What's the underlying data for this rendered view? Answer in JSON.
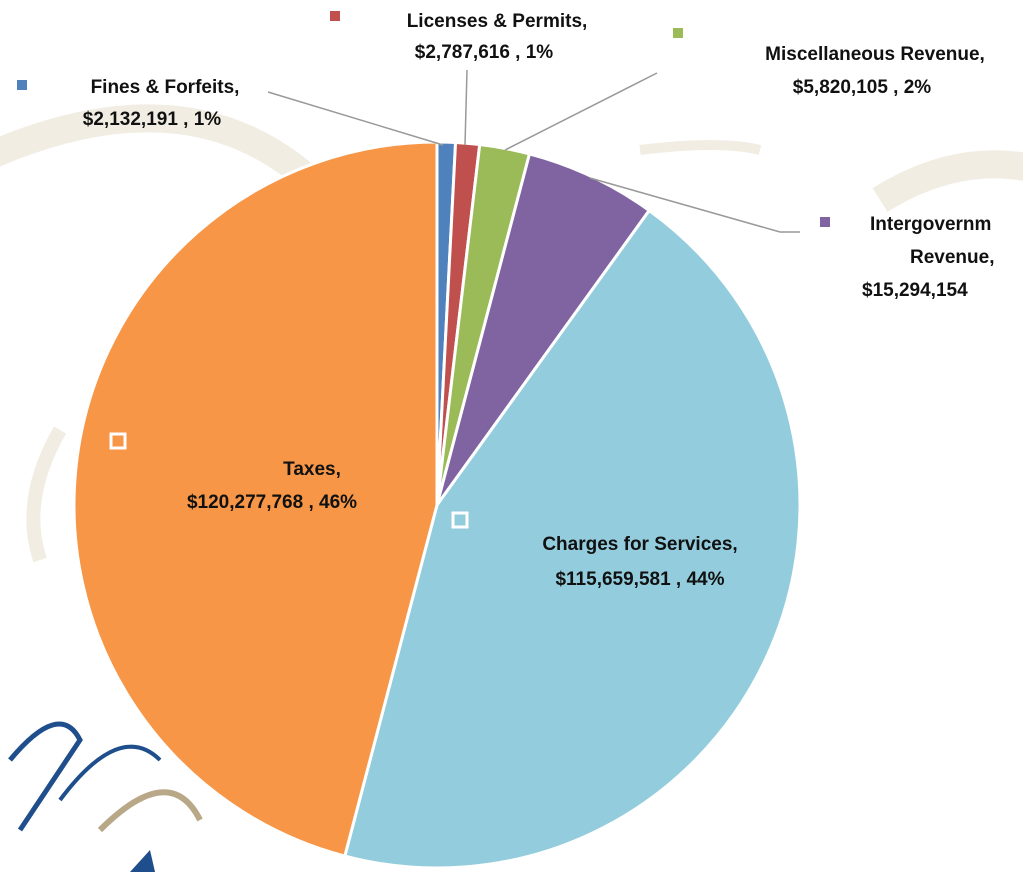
{
  "chart_data": {
    "type": "pie",
    "labels": [
      [
        "Fines & Forfeits,",
        "$2,132,191 , 1%"
      ],
      [
        "Licenses & Permits,",
        "$2,787,616 , 1%"
      ],
      [
        "Miscellaneous Revenue,",
        "$5,820,105 , 2%"
      ],
      [
        "Intergovernm",
        "Revenue,",
        "$15,294,154"
      ],
      [
        "Charges for Services,",
        "$115,659,581 , 44%"
      ],
      [
        "Taxes,",
        "$120,277,768 , 46%"
      ]
    ],
    "values": [
      2132191,
      2787616,
      5820105,
      15294154,
      115659581,
      120277768
    ],
    "colors": [
      "#4f81bd",
      "#c0504d",
      "#9bbb59",
      "#8064a2",
      "#93cddd",
      "#f79646"
    ]
  }
}
